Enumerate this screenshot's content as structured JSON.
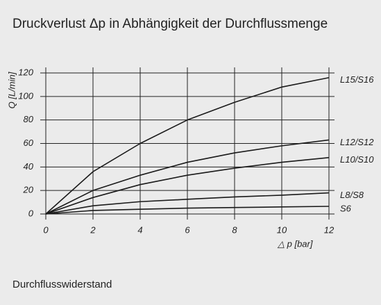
{
  "chart_data": {
    "type": "line",
    "title": "Druckverlust Δp in Abhängigkeit der Durchflussmenge",
    "subtitle": "Durchflusswiderstand",
    "x_label": "△ p [bar]",
    "y_label": "Q [L/min]",
    "x": [
      0,
      2,
      4,
      6,
      8,
      10,
      12
    ],
    "series": [
      {
        "name": "L15/S16",
        "color": "#1a1a1a",
        "values": [
          0,
          36,
          60,
          80,
          95,
          108,
          116
        ]
      },
      {
        "name": "L12/S12",
        "color": "#1a1a1a",
        "values": [
          0,
          20,
          33,
          44,
          52,
          58,
          63
        ]
      },
      {
        "name": "L10/S10",
        "color": "#1a1a1a",
        "values": [
          0,
          14,
          25,
          33,
          39,
          44,
          48
        ]
      },
      {
        "name": "L8/S8",
        "color": "#1a1a1a",
        "values": [
          0,
          7,
          10.5,
          12.5,
          14.5,
          16,
          18
        ]
      },
      {
        "name": "S6",
        "color": "#1a1a1a",
        "values": [
          0,
          3,
          4,
          5,
          5.5,
          6,
          6.5
        ]
      }
    ],
    "xlim": [
      0,
      12
    ],
    "xticks": [
      0,
      2,
      4,
      6,
      8,
      10,
      12
    ],
    "ylim": [
      0,
      120
    ],
    "yticks": [
      0,
      20,
      40,
      60,
      80,
      100,
      120
    ],
    "grid": true
  }
}
